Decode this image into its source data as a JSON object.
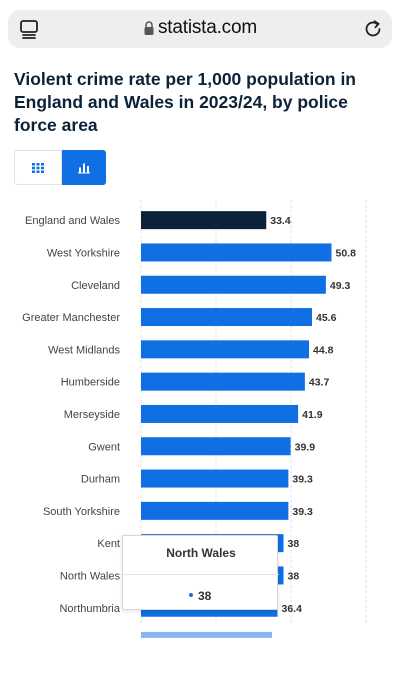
{
  "browser": {
    "url": "statista.com",
    "icons": {
      "tabs": "tabs-icon",
      "lock": "lock-icon",
      "reload": "reload-icon"
    }
  },
  "title": "Violent crime rate per 1,000 population in England and Wales in 2023/24, by police force area",
  "view_toggle": {
    "options": [
      "table-view",
      "chart-view"
    ],
    "selected": "chart-view"
  },
  "colors": {
    "accent": "#0f6fe3",
    "highlight": "#0b2239"
  },
  "chart_data": {
    "type": "bar",
    "orientation": "horizontal",
    "title": "Violent crime rate per 1,000 population in England and Wales in 2023/24, by police force area",
    "xlabel": "",
    "ylabel": "",
    "xlim": [
      0,
      60
    ],
    "grid": true,
    "categories": [
      "England and Wales",
      "West Yorkshire",
      "Cleveland",
      "Greater Manchester",
      "West Midlands",
      "Humberside",
      "Merseyside",
      "Gwent",
      "Durham",
      "South Yorkshire",
      "Kent",
      "North Wales",
      "Northumbria"
    ],
    "values": [
      33.4,
      50.8,
      49.3,
      45.6,
      44.8,
      43.7,
      41.9,
      39.9,
      39.3,
      39.3,
      38,
      38,
      36.4
    ],
    "value_labels": [
      "33.4",
      "50.8",
      "49.3",
      "45.6",
      "44.8",
      "43.7",
      "41.9",
      "39.9",
      "39.3",
      "39.3",
      "38",
      "38",
      "36.4"
    ],
    "highlighted_category": "England and Wales"
  },
  "tooltip": {
    "title": "North Wales",
    "value": "38"
  }
}
